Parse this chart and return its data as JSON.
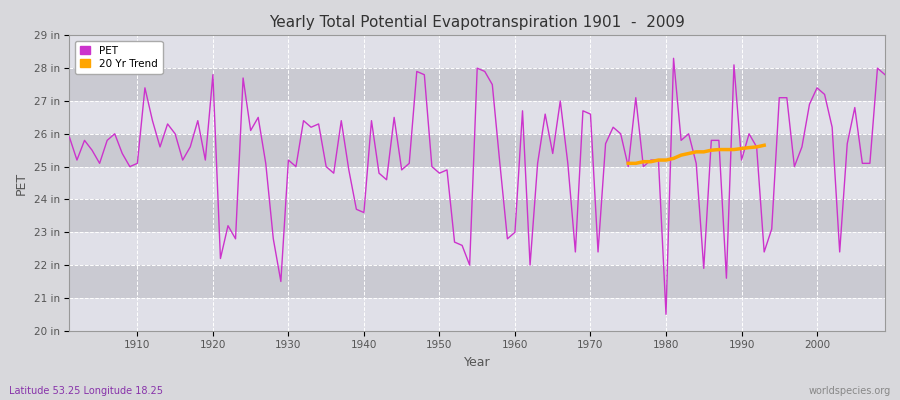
{
  "title": "Yearly Total Potential Evapotranspiration 1901  -  2009",
  "xlabel": "Year",
  "ylabel": "PET",
  "subtitle_left": "Latitude 53.25 Longitude 18.25",
  "subtitle_right": "worldspecies.org",
  "ylim": [
    20,
    29
  ],
  "ytick_labels": [
    "20 in",
    "21 in",
    "22 in",
    "23 in",
    "24 in",
    "25 in",
    "26 in",
    "27 in",
    "28 in",
    "29 in"
  ],
  "ytick_values": [
    20,
    21,
    22,
    23,
    24,
    25,
    26,
    27,
    28,
    29
  ],
  "pet_color": "#CC33CC",
  "trend_color": "#FFA500",
  "fig_bg_color": "#D8D8DC",
  "plot_bg_color": "#E0E0E8",
  "alt_bg_color": "#CACAD2",
  "grid_color": "#FFFFFF",
  "years": [
    1901,
    1902,
    1903,
    1904,
    1905,
    1906,
    1907,
    1908,
    1909,
    1910,
    1911,
    1912,
    1913,
    1914,
    1915,
    1916,
    1917,
    1918,
    1919,
    1920,
    1921,
    1922,
    1923,
    1924,
    1925,
    1926,
    1927,
    1928,
    1929,
    1930,
    1931,
    1932,
    1933,
    1934,
    1935,
    1936,
    1937,
    1938,
    1939,
    1940,
    1941,
    1942,
    1943,
    1944,
    1945,
    1946,
    1947,
    1948,
    1949,
    1950,
    1951,
    1952,
    1953,
    1954,
    1955,
    1956,
    1957,
    1958,
    1959,
    1960,
    1961,
    1962,
    1963,
    1964,
    1965,
    1966,
    1967,
    1968,
    1969,
    1970,
    1971,
    1972,
    1973,
    1974,
    1975,
    1976,
    1977,
    1978,
    1979,
    1980,
    1981,
    1982,
    1983,
    1984,
    1985,
    1986,
    1987,
    1988,
    1989,
    1990,
    1991,
    1992,
    1993,
    1994,
    1995,
    1996,
    1997,
    1998,
    1999,
    2000,
    2001,
    2002,
    2003,
    2004,
    2005,
    2006,
    2007,
    2008,
    2009
  ],
  "pet_values": [
    25.9,
    25.2,
    25.8,
    25.5,
    25.1,
    25.8,
    26.0,
    25.4,
    25.0,
    25.1,
    27.4,
    26.4,
    25.6,
    26.3,
    26.0,
    25.2,
    25.6,
    26.4,
    25.2,
    27.8,
    22.2,
    23.2,
    22.8,
    27.7,
    26.1,
    26.5,
    25.1,
    22.8,
    21.5,
    25.2,
    25.0,
    26.4,
    26.2,
    26.3,
    25.0,
    24.8,
    26.4,
    24.9,
    23.7,
    23.6,
    26.4,
    24.8,
    24.6,
    26.5,
    24.9,
    25.1,
    27.9,
    27.8,
    25.0,
    24.8,
    24.9,
    22.7,
    22.6,
    22.0,
    28.0,
    27.9,
    27.5,
    25.1,
    22.8,
    23.0,
    26.7,
    22.0,
    25.1,
    26.6,
    25.4,
    27.0,
    25.1,
    22.4,
    26.7,
    26.6,
    22.4,
    25.7,
    26.2,
    26.0,
    25.0,
    27.1,
    25.0,
    25.2,
    25.2,
    20.5,
    28.3,
    25.8,
    26.0,
    25.1,
    21.9,
    25.8,
    25.8,
    21.6,
    28.1,
    25.2,
    26.0,
    25.6,
    22.4,
    23.1,
    27.1,
    27.1,
    25.0,
    25.6,
    26.9,
    27.4,
    27.2,
    26.2,
    22.4,
    25.7,
    26.8,
    25.1,
    25.1,
    28.0,
    27.8
  ],
  "trend_years": [
    1975,
    1976,
    1977,
    1978,
    1979,
    1980,
    1981,
    1982,
    1983,
    1984,
    1985,
    1986,
    1987,
    1988,
    1989,
    1990,
    1991,
    1992,
    1993
  ],
  "trend_values": [
    25.1,
    25.1,
    25.15,
    25.15,
    25.2,
    25.2,
    25.25,
    25.35,
    25.4,
    25.45,
    25.45,
    25.5,
    25.52,
    25.52,
    25.52,
    25.55,
    25.58,
    25.6,
    25.65
  ],
  "xticks": [
    1910,
    1920,
    1930,
    1940,
    1950,
    1960,
    1970,
    1980,
    1990,
    2000
  ]
}
